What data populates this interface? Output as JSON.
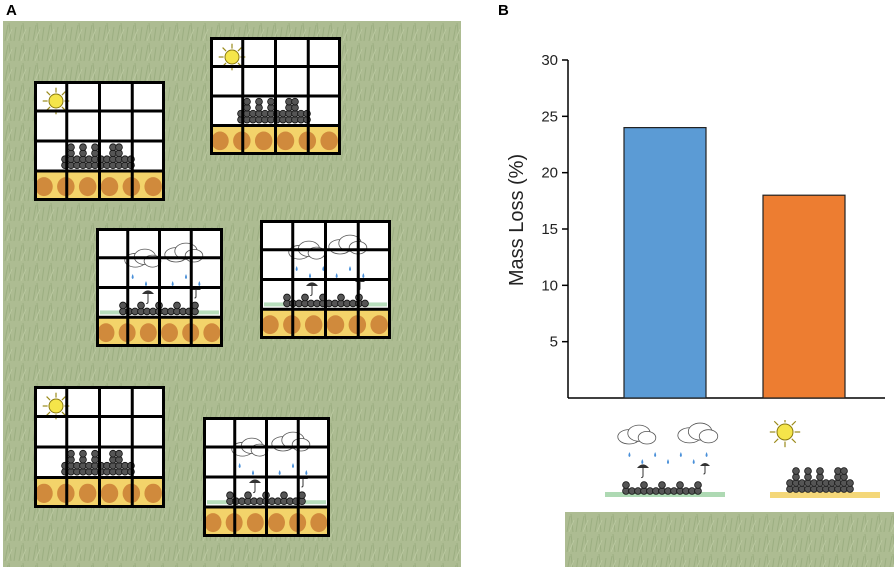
{
  "panels": {
    "a_label": "A",
    "b_label": "B"
  },
  "colors": {
    "grass_background": "#a7b78c",
    "wet_bar": "#5b9bd5",
    "dry_bar": "#ed7d31",
    "grid_line": "#000000",
    "soil": "#d08a3c",
    "sand_yellow": "#f3d36a"
  },
  "plots": [
    {
      "condition": "dry",
      "icon": "sun-icon"
    },
    {
      "condition": "dry",
      "icon": "sun-icon"
    },
    {
      "condition": "wet",
      "icon": "rain-cloud-icon"
    },
    {
      "condition": "wet",
      "icon": "rain-cloud-icon"
    },
    {
      "condition": "dry",
      "icon": "sun-icon"
    },
    {
      "condition": "wet",
      "icon": "rain-cloud-icon"
    }
  ],
  "chart_data": {
    "type": "bar",
    "categories": [
      "wet",
      "dry"
    ],
    "category_icons": [
      "rain-cloud-icon",
      "sun-icon"
    ],
    "values": [
      24,
      18
    ],
    "colors": [
      "#5b9bd5",
      "#ed7d31"
    ],
    "ylabel": "Mass Loss (%)",
    "xlabel": "",
    "ylim": [
      0,
      30
    ],
    "yticks": [
      5,
      10,
      15,
      20,
      25,
      30
    ],
    "grid": false,
    "legend": "none"
  }
}
